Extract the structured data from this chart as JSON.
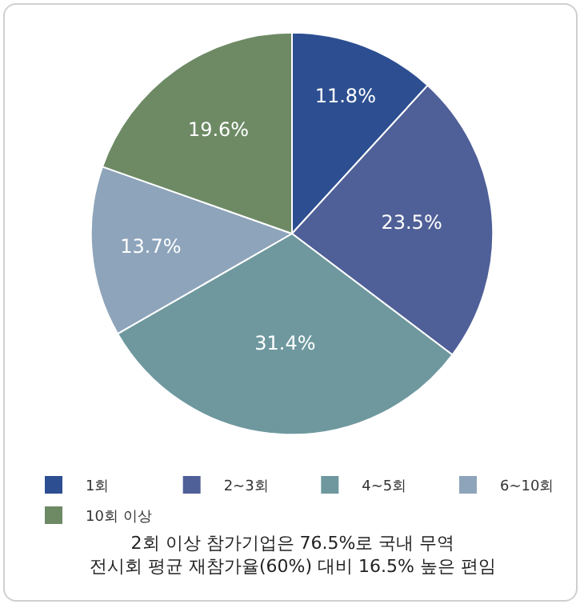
{
  "chart_data": {
    "type": "pie",
    "categories": [
      "1회",
      "2~3회",
      "4~5회",
      "6~10회",
      "10회 이상"
    ],
    "values": [
      11.8,
      23.5,
      31.4,
      13.7,
      19.6
    ],
    "colors": [
      "#2d4f91",
      "#4f5f97",
      "#6e989e",
      "#8ea4bb",
      "#6d8a65"
    ],
    "value_labels": [
      "11.8%",
      "23.5%",
      "31.4%",
      "13.7%",
      "19.6%"
    ],
    "legend": "bottom",
    "annotations": [
      "2회 이상 참가기업은 76.5%로 국내 무역\n전시회 평균 재참가율(60%) 대비 16.5% 높은 편임"
    ]
  }
}
